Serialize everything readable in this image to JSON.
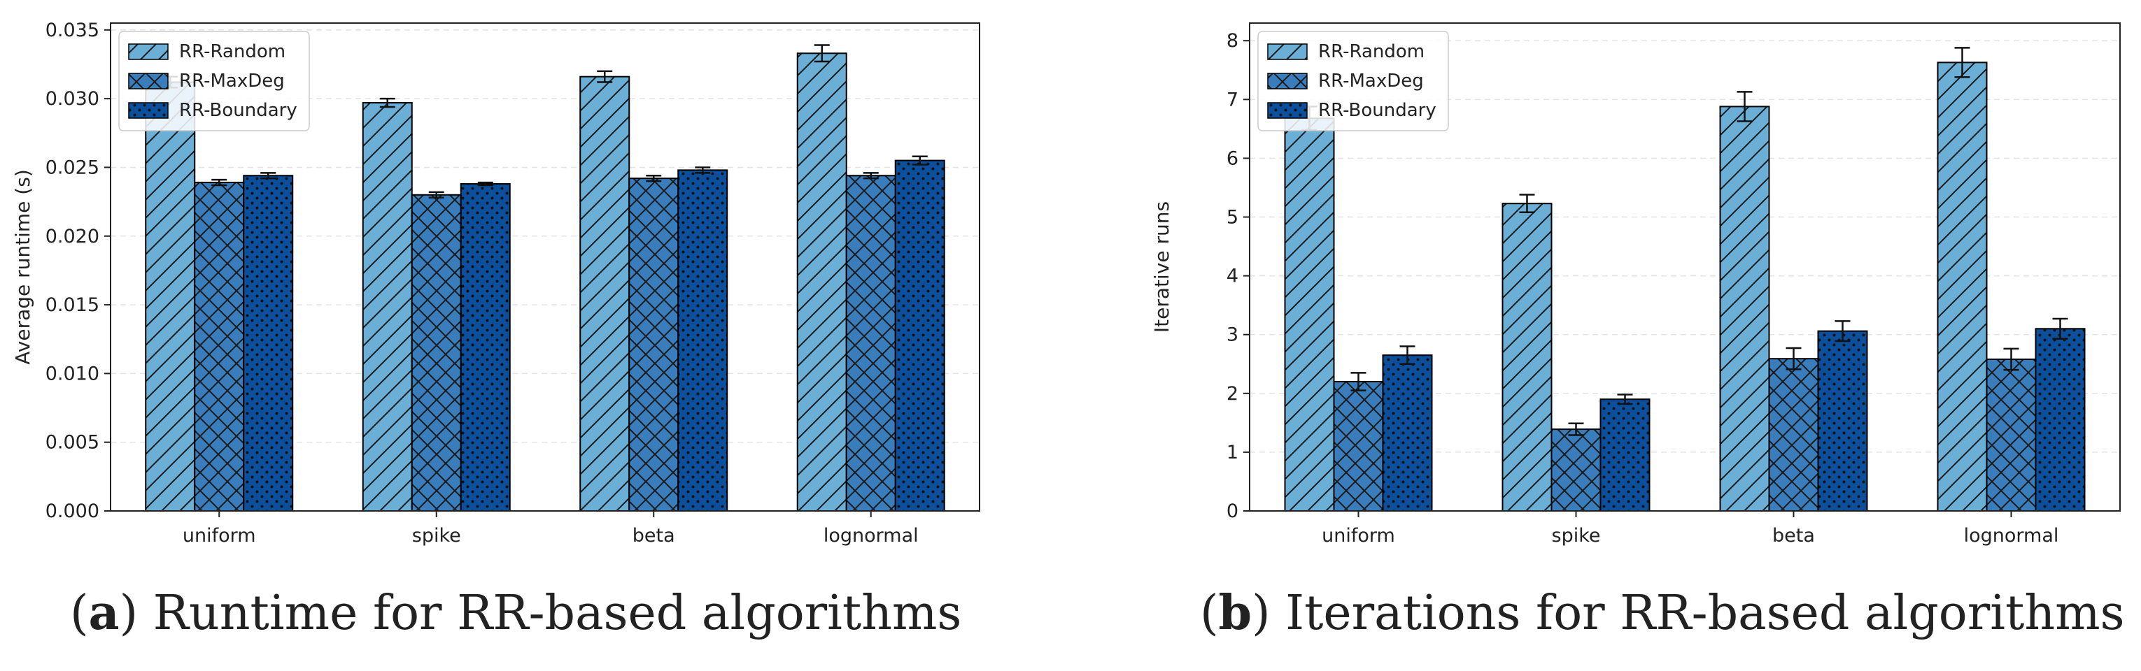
{
  "chart_data": [
    {
      "type": "bar",
      "panel_letter": "a",
      "caption_text": " Runtime for RR-based algorithms",
      "title": "",
      "xlabel": "",
      "ylabel": "Average runtime (s)",
      "categories": [
        "uniform",
        "spike",
        "beta",
        "lognormal"
      ],
      "ylim": [
        0,
        0.0355
      ],
      "yticks": [
        0,
        0.005,
        0.01,
        0.015,
        0.02,
        0.025,
        0.03,
        0.035
      ],
      "ytick_labels": [
        "0.000",
        "0.005",
        "0.010",
        "0.015",
        "0.020",
        "0.025",
        "0.030",
        "0.035"
      ],
      "grid": "y-dashed",
      "legend_position": "top-left",
      "series": [
        {
          "name": "RR-Random",
          "values": [
            0.0312,
            0.0297,
            0.0316,
            0.0333
          ],
          "errors": [
            0.0004,
            0.0003,
            0.0004,
            0.0006
          ]
        },
        {
          "name": "RR-MaxDeg",
          "values": [
            0.0239,
            0.023,
            0.0242,
            0.0244
          ],
          "errors": [
            0.0002,
            0.0002,
            0.0002,
            0.0002
          ]
        },
        {
          "name": "RR-Boundary",
          "values": [
            0.0244,
            0.0238,
            0.0248,
            0.0255
          ],
          "errors": [
            0.0002,
            0.0001,
            0.0002,
            0.0003
          ]
        }
      ]
    },
    {
      "type": "bar",
      "panel_letter": "b",
      "caption_text": " Iterations for RR-based algorithms",
      "title": "",
      "xlabel": "",
      "ylabel": "Iterative runs",
      "categories": [
        "uniform",
        "spike",
        "beta",
        "lognormal"
      ],
      "ylim": [
        0,
        8.3
      ],
      "yticks": [
        0,
        1,
        2,
        3,
        4,
        5,
        6,
        7,
        8
      ],
      "ytick_labels": [
        "0",
        "1",
        "2",
        "3",
        "4",
        "5",
        "6",
        "7",
        "8"
      ],
      "grid": "y-dashed",
      "legend_position": "top-left",
      "series": [
        {
          "name": "RR-Random",
          "values": [
            6.68,
            5.23,
            6.88,
            7.63
          ],
          "errors": [
            0.2,
            0.15,
            0.25,
            0.25
          ]
        },
        {
          "name": "RR-MaxDeg",
          "values": [
            2.2,
            1.39,
            2.59,
            2.58
          ],
          "errors": [
            0.15,
            0.1,
            0.18,
            0.18
          ]
        },
        {
          "name": "RR-Boundary",
          "values": [
            2.65,
            1.9,
            3.06,
            3.1
          ],
          "errors": [
            0.15,
            0.08,
            0.17,
            0.17
          ]
        }
      ]
    }
  ],
  "styles": {
    "series_colors": [
      "#6baed6",
      "#3a7dbd",
      "#0c4f9c"
    ],
    "edge_color": "#000000",
    "grid_color": "#e4e4e4"
  }
}
